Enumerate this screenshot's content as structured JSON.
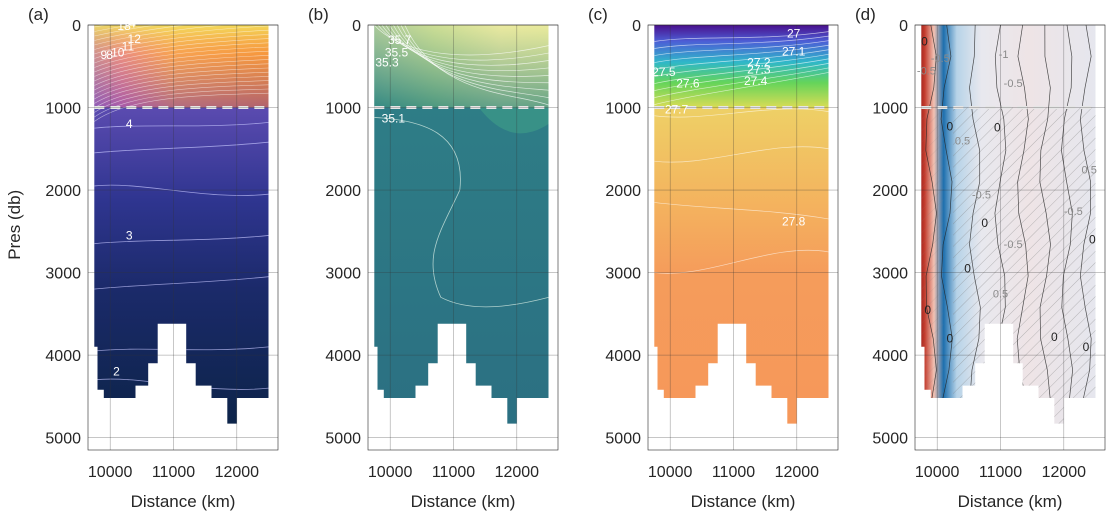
{
  "chart_data": [
    {
      "panel": "(a)",
      "type": "heatmap",
      "xlabel": "Distance (km)",
      "ylabel": "Pres (db)",
      "xticks": [
        10000,
        11000,
        12000
      ],
      "yticks": [
        0,
        1000,
        2000,
        3000,
        4000,
        5000
      ],
      "xlim": [
        9650,
        12650
      ],
      "ylim": [
        5150,
        0
      ],
      "contour_labels": [
        {
          "text": "14",
          "x": 10300,
          "y": 30,
          "color": "light"
        },
        {
          "text": "13",
          "x": 10220,
          "y": 60,
          "color": "light"
        },
        {
          "text": "12",
          "x": 10380,
          "y": 220,
          "color": "light"
        },
        {
          "text": "11",
          "x": 10280,
          "y": 310,
          "color": "light"
        },
        {
          "text": "10",
          "x": 10120,
          "y": 380,
          "color": "light"
        },
        {
          "text": "9",
          "x": 9900,
          "y": 410,
          "color": "light"
        },
        {
          "text": "8",
          "x": 9990,
          "y": 410,
          "color": "light"
        },
        {
          "text": "4",
          "x": 10300,
          "y": 1250,
          "color": "light"
        },
        {
          "text": "3",
          "x": 10300,
          "y": 2600,
          "color": "light"
        },
        {
          "text": "2",
          "x": 10100,
          "y": 4250,
          "color": "light"
        }
      ]
    },
    {
      "panel": "(b)",
      "type": "heatmap",
      "xlabel": "Distance (km)",
      "ylabel": "",
      "xticks": [
        10000,
        11000,
        12000
      ],
      "yticks": [
        0,
        1000,
        2000,
        3000,
        4000,
        5000
      ],
      "xlim": [
        9650,
        12650
      ],
      "ylim": [
        5150,
        0
      ],
      "contour_labels": [
        {
          "text": "35.7",
          "x": 10150,
          "y": 230,
          "color": "light"
        },
        {
          "text": "35.5",
          "x": 10100,
          "y": 380,
          "color": "light"
        },
        {
          "text": "35.3",
          "x": 9950,
          "y": 500,
          "color": "light"
        },
        {
          "text": "35.1",
          "x": 10050,
          "y": 1180,
          "color": "light"
        }
      ]
    },
    {
      "panel": "(c)",
      "type": "heatmap",
      "xlabel": "Distance (km)",
      "ylabel": "",
      "xticks": [
        10000,
        11000,
        12000
      ],
      "yticks": [
        0,
        1000,
        2000,
        3000,
        4000,
        5000
      ],
      "xlim": [
        9650,
        12650
      ],
      "ylim": [
        5150,
        0
      ],
      "contour_labels": [
        {
          "text": "27",
          "x": 11950,
          "y": 150,
          "color": "light"
        },
        {
          "text": "27.1",
          "x": 11950,
          "y": 370,
          "color": "light"
        },
        {
          "text": "27.2",
          "x": 11400,
          "y": 500,
          "color": "light"
        },
        {
          "text": "27.3",
          "x": 11400,
          "y": 590,
          "color": "light"
        },
        {
          "text": "27.4",
          "x": 11350,
          "y": 730,
          "color": "light"
        },
        {
          "text": "27.5",
          "x": 9900,
          "y": 620,
          "color": "light"
        },
        {
          "text": "27.6",
          "x": 10280,
          "y": 760,
          "color": "light"
        },
        {
          "text": "27.7",
          "x": 10100,
          "y": 1070,
          "color": "light"
        },
        {
          "text": "27.8",
          "x": 11950,
          "y": 2430,
          "color": "light"
        }
      ]
    },
    {
      "panel": "(d)",
      "type": "heatmap",
      "xlabel": "Distance (km)",
      "ylabel": "",
      "xticks": [
        10000,
        11000,
        12000
      ],
      "yticks": [
        0,
        1000,
        2000,
        3000,
        4000,
        5000
      ],
      "xlim": [
        9650,
        12650
      ],
      "ylim": [
        5150,
        0
      ],
      "contour_labels": [
        {
          "text": "0",
          "x": 9800,
          "y": 250,
          "color": "dark"
        },
        {
          "text": "0",
          "x": 10200,
          "y": 1280,
          "color": "dark"
        },
        {
          "text": "0",
          "x": 10950,
          "y": 1290,
          "color": "dark"
        },
        {
          "text": "0",
          "x": 10750,
          "y": 2450,
          "color": "dark"
        },
        {
          "text": "0",
          "x": 10480,
          "y": 3000,
          "color": "dark"
        },
        {
          "text": "0",
          "x": 9850,
          "y": 3500,
          "color": "dark"
        },
        {
          "text": "0",
          "x": 10200,
          "y": 3850,
          "color": "dark"
        },
        {
          "text": "0",
          "x": 11850,
          "y": 3830,
          "color": "dark"
        },
        {
          "text": "0",
          "x": 12350,
          "y": 3950,
          "color": "dark"
        },
        {
          "text": "0",
          "x": 12450,
          "y": 2650,
          "color": "dark"
        },
        {
          "text": "-0.5",
          "x": 9830,
          "y": 600,
          "color": "gray"
        },
        {
          "text": "-0.5",
          "x": 10050,
          "y": 450,
          "color": "gray"
        },
        {
          "text": "-1",
          "x": 11050,
          "y": 400,
          "color": "gray"
        },
        {
          "text": "-0.5",
          "x": 11200,
          "y": 750,
          "color": "gray"
        },
        {
          "text": "0.5",
          "x": 10400,
          "y": 1450,
          "color": "gray"
        },
        {
          "text": "-0.5",
          "x": 10700,
          "y": 2100,
          "color": "gray"
        },
        {
          "text": "0.5",
          "x": 11000,
          "y": 3300,
          "color": "gray"
        },
        {
          "text": "-0.5",
          "x": 11200,
          "y": 2700,
          "color": "gray"
        },
        {
          "text": "-0.5",
          "x": 12150,
          "y": 2300,
          "color": "gray"
        },
        {
          "text": "0.5",
          "x": 12400,
          "y": 1800,
          "color": "gray"
        }
      ]
    }
  ],
  "panel_labels": [
    "(a)",
    "(b)",
    "(c)",
    "(d)"
  ],
  "xlabel": "Distance (km)",
  "ylabel": "Pres (db)",
  "colors": {
    "a_surface_warm": "#f39a3f",
    "a_deep": "#0b2346",
    "b_deep": "#2e7a84",
    "b_surface": "#e9e69a",
    "c_deep": "#f59c5b",
    "c_surface": "#5a1aa0",
    "d_red": "#b22222",
    "d_blue": "#2b7ab8"
  }
}
